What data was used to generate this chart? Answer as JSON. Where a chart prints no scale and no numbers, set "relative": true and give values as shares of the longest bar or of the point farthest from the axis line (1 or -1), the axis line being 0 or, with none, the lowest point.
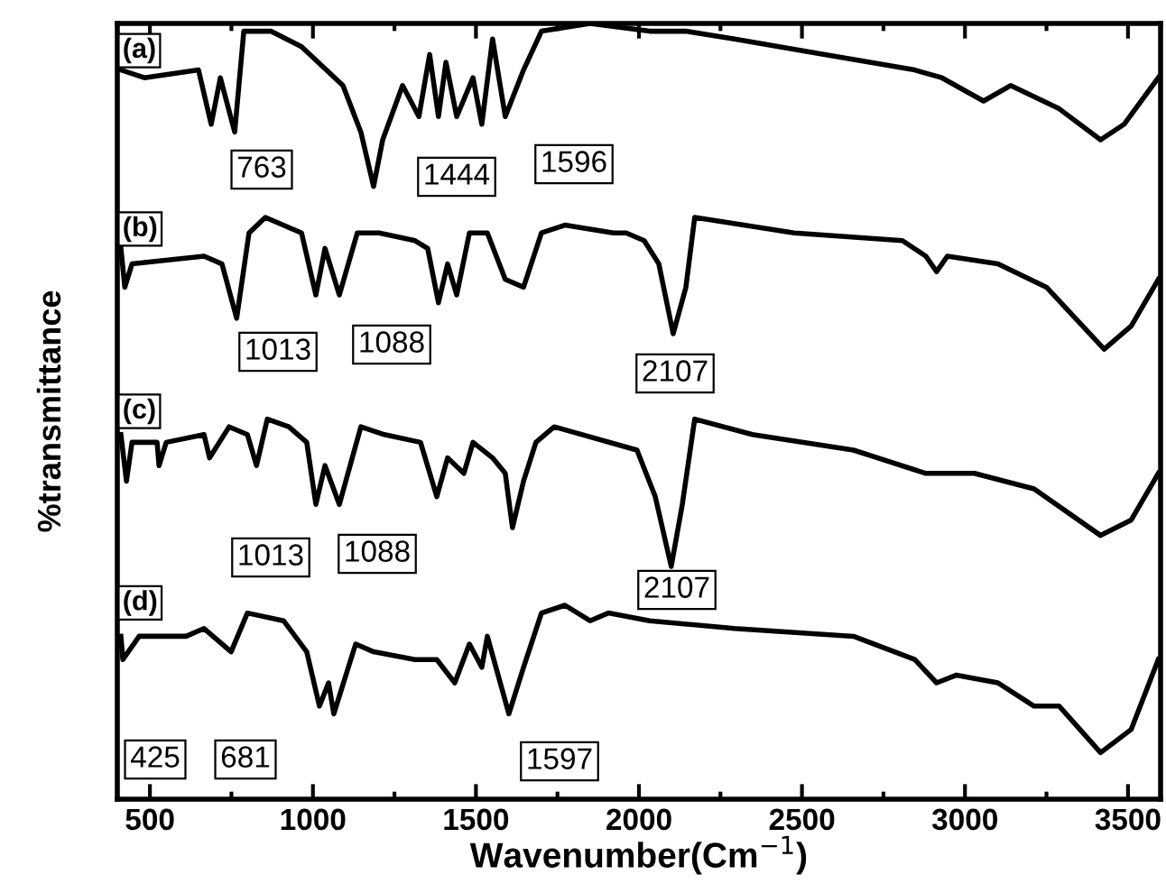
{
  "chart_data": {
    "type": "line",
    "relative": true,
    "xlabel": "Wavenumber(Cm$^{−1}$)",
    "ylabel": "%transmittance",
    "xlim": [
      400,
      3600
    ],
    "xticks": [
      500,
      1000,
      1500,
      2000,
      2500,
      3000,
      3500
    ],
    "tick_labels": "x",
    "series": [
      {
        "name": "(a)",
        "color": "#000000",
        "x": [
          411,
          483,
          649,
          688,
          716,
          760,
          788,
          871,
          965,
          1092,
          1147,
          1186,
          1214,
          1275,
          1325,
          1358,
          1385,
          1408,
          1441,
          1491,
          1518,
          1551,
          1590,
          1646,
          1701,
          1850,
          2033,
          2144,
          2293,
          2570,
          2846,
          2929,
          3057,
          3140,
          3289,
          3416,
          3488,
          3593
        ],
        "values": [
          0.94,
          0.93,
          0.94,
          0.87,
          0.93,
          0.86,
          0.99,
          0.99,
          0.97,
          0.92,
          0.86,
          0.79,
          0.85,
          0.92,
          0.88,
          0.96,
          0.88,
          0.95,
          0.88,
          0.93,
          0.87,
          0.98,
          0.88,
          0.94,
          0.99,
          1.0,
          0.99,
          0.99,
          0.98,
          0.96,
          0.94,
          0.93,
          0.9,
          0.92,
          0.89,
          0.85,
          0.87,
          0.93
        ]
      },
      {
        "name": "(b)",
        "color": "#000000",
        "x": [
          411,
          423,
          445,
          666,
          721,
          766,
          804,
          854,
          965,
          1009,
          1037,
          1081,
          1136,
          1203,
          1313,
          1352,
          1385,
          1413,
          1441,
          1480,
          1535,
          1590,
          1646,
          1701,
          1773,
          1922,
          1961,
          2016,
          2061,
          2105,
          2144,
          2171,
          2476,
          2808,
          2880,
          2913,
          2946,
          3101,
          3250,
          3427,
          3510,
          3593
        ],
        "values": [
          0.71,
          0.66,
          0.69,
          0.7,
          0.69,
          0.62,
          0.73,
          0.75,
          0.73,
          0.65,
          0.71,
          0.65,
          0.73,
          0.73,
          0.72,
          0.71,
          0.64,
          0.69,
          0.65,
          0.73,
          0.73,
          0.67,
          0.66,
          0.73,
          0.74,
          0.73,
          0.73,
          0.72,
          0.69,
          0.6,
          0.66,
          0.75,
          0.73,
          0.72,
          0.7,
          0.68,
          0.7,
          0.69,
          0.66,
          0.58,
          0.61,
          0.67
        ]
      },
      {
        "name": "(c)",
        "color": "#000000",
        "x": [
          411,
          428,
          445,
          522,
          528,
          550,
          666,
          683,
          743,
          799,
          827,
          860,
          926,
          981,
          1009,
          1037,
          1081,
          1147,
          1219,
          1330,
          1380,
          1413,
          1463,
          1491,
          1551,
          1590,
          1612,
          1646,
          1684,
          1740,
          1994,
          2050,
          2099,
          2133,
          2171,
          2348,
          2658,
          2880,
          2907,
          3029,
          3212,
          3416,
          3510,
          3593
        ],
        "values": [
          0.47,
          0.41,
          0.46,
          0.46,
          0.43,
          0.46,
          0.47,
          0.44,
          0.48,
          0.47,
          0.43,
          0.49,
          0.48,
          0.46,
          0.38,
          0.43,
          0.38,
          0.48,
          0.47,
          0.46,
          0.39,
          0.44,
          0.42,
          0.46,
          0.44,
          0.42,
          0.35,
          0.41,
          0.46,
          0.48,
          0.45,
          0.39,
          0.3,
          0.38,
          0.49,
          0.47,
          0.45,
          0.42,
          0.42,
          0.42,
          0.4,
          0.34,
          0.36,
          0.42
        ]
      },
      {
        "name": "(d)",
        "color": "#000000",
        "x": [
          411,
          417,
          467,
          611,
          666,
          749,
          799,
          910,
          981,
          1020,
          1048,
          1064,
          1131,
          1186,
          1313,
          1380,
          1435,
          1480,
          1518,
          1535,
          1601,
          1646,
          1701,
          1773,
          1850,
          1906,
          2033,
          2293,
          2658,
          2846,
          2913,
          2974,
          3101,
          3212,
          3289,
          3416,
          3510,
          3593
        ],
        "values": [
          0.21,
          0.18,
          0.21,
          0.21,
          0.22,
          0.19,
          0.24,
          0.23,
          0.19,
          0.12,
          0.15,
          0.11,
          0.2,
          0.19,
          0.18,
          0.18,
          0.15,
          0.2,
          0.17,
          0.21,
          0.11,
          0.17,
          0.24,
          0.25,
          0.23,
          0.24,
          0.23,
          0.22,
          0.21,
          0.18,
          0.15,
          0.16,
          0.15,
          0.12,
          0.12,
          0.06,
          0.09,
          0.18
        ]
      }
    ],
    "annotations": [
      "763",
      "1444",
      "1596",
      "1013",
      "1088",
      "2107",
      "1013",
      "1088",
      "2107",
      "425",
      "681",
      "1597"
    ]
  }
}
